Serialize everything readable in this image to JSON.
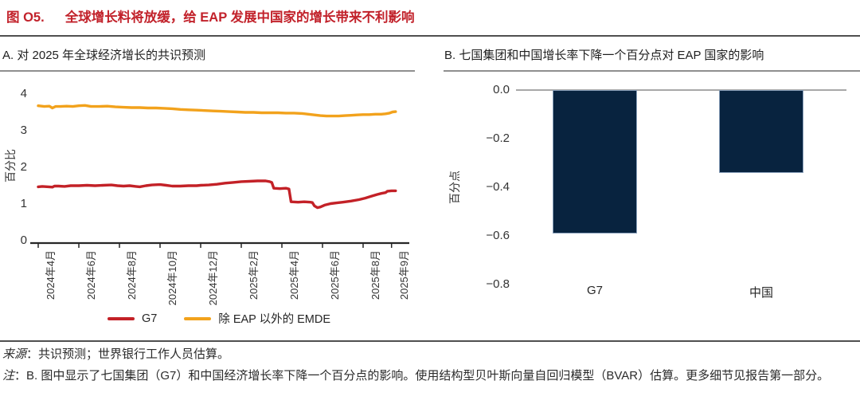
{
  "figure": {
    "label": "图 O5.",
    "title": "全球增长料将放缓，给 EAP 发展中国家的增长带来不利影响"
  },
  "panel_a": {
    "title": "A. 对 2025 年全球经济增长的共识预测"
  },
  "panel_b": {
    "title": "B. 七国集团和中国增长率下降一个百分点对 EAP 国家的影响"
  },
  "source": {
    "prefix": "来源",
    "text": "：共识预测；世界银行工作人员估算。"
  },
  "note": {
    "prefix": "注",
    "text": "：B. 图中显示了七国集团（G7）和中国经济增长率下降一个百分点的影响。使用结构型贝叶斯向量自回归模型（BVAR）估算。更多细节见报告第一部分。"
  },
  "colors": {
    "title_red": "#c2222b",
    "g7_line": "#c32127",
    "emde_line": "#f2a21c",
    "bar_navy": "#08233f",
    "axis": "#262626",
    "zero_line": "#a8a8a8"
  },
  "chart_data": [
    {
      "panel": "A",
      "type": "line",
      "title": "A. 对 2025 年全球经济增长的共识预测",
      "ylabel": "百分比",
      "ylim": [
        0,
        4
      ],
      "yticks": [
        0,
        1,
        2,
        3,
        4
      ],
      "x_unit": "months since 2024-04",
      "xticks": [
        {
          "m": 0,
          "label": "2024年4月"
        },
        {
          "m": 2,
          "label": "2024年6月"
        },
        {
          "m": 4,
          "label": "2024年8月"
        },
        {
          "m": 6,
          "label": "2024年10月"
        },
        {
          "m": 8,
          "label": "2024年12月"
        },
        {
          "m": 10,
          "label": "2025年2月"
        },
        {
          "m": 12,
          "label": "2025年4月"
        },
        {
          "m": 14,
          "label": "2025年6月"
        },
        {
          "m": 16,
          "label": "2025年8月"
        },
        {
          "m": 17.4,
          "label": "2025年9月"
        }
      ],
      "legend_position": "bottom",
      "grid": false,
      "series": [
        {
          "name": "G7",
          "color": "#c32127",
          "points": [
            [
              0,
              1.47
            ],
            [
              0.2,
              1.48
            ],
            [
              0.5,
              1.47
            ],
            [
              0.7,
              1.46
            ],
            [
              0.8,
              1.49
            ],
            [
              1,
              1.49
            ],
            [
              1.3,
              1.48
            ],
            [
              1.6,
              1.5
            ],
            [
              2,
              1.5
            ],
            [
              2.4,
              1.51
            ],
            [
              2.8,
              1.5
            ],
            [
              3.2,
              1.51
            ],
            [
              3.6,
              1.52
            ],
            [
              3.9,
              1.5
            ],
            [
              4.2,
              1.49
            ],
            [
              4.5,
              1.5
            ],
            [
              4.8,
              1.48
            ],
            [
              5,
              1.47
            ],
            [
              5.3,
              1.5
            ],
            [
              5.6,
              1.52
            ],
            [
              6,
              1.53
            ],
            [
              6.3,
              1.51
            ],
            [
              6.6,
              1.49
            ],
            [
              7,
              1.49
            ],
            [
              7.4,
              1.5
            ],
            [
              7.8,
              1.5
            ],
            [
              8,
              1.51
            ],
            [
              8.4,
              1.52
            ],
            [
              8.8,
              1.54
            ],
            [
              9.2,
              1.57
            ],
            [
              9.6,
              1.59
            ],
            [
              10,
              1.61
            ],
            [
              10.4,
              1.62
            ],
            [
              10.8,
              1.63
            ],
            [
              11.2,
              1.63
            ],
            [
              11.4,
              1.61
            ],
            [
              11.5,
              1.59
            ],
            [
              11.6,
              1.43
            ],
            [
              11.9,
              1.42
            ],
            [
              12.2,
              1.43
            ],
            [
              12.35,
              1.41
            ],
            [
              12.45,
              1.06
            ],
            [
              12.8,
              1.05
            ],
            [
              13.1,
              1.06
            ],
            [
              13.4,
              1.05
            ],
            [
              13.5,
              1.04
            ],
            [
              13.6,
              0.95
            ],
            [
              13.75,
              0.9
            ],
            [
              13.9,
              0.92
            ],
            [
              14.1,
              0.97
            ],
            [
              14.4,
              1.01
            ],
            [
              14.7,
              1.03
            ],
            [
              15,
              1.05
            ],
            [
              15.4,
              1.08
            ],
            [
              15.8,
              1.12
            ],
            [
              16.1,
              1.16
            ],
            [
              16.4,
              1.21
            ],
            [
              16.7,
              1.26
            ],
            [
              16.9,
              1.29
            ],
            [
              17.1,
              1.31
            ],
            [
              17.2,
              1.35
            ],
            [
              17.4,
              1.36
            ],
            [
              17.6,
              1.36
            ]
          ]
        },
        {
          "name": "除 EAP 以外的 EMDE",
          "color": "#f2a21c",
          "points": [
            [
              0,
              3.68
            ],
            [
              0.3,
              3.66
            ],
            [
              0.55,
              3.67
            ],
            [
              0.7,
              3.62
            ],
            [
              0.85,
              3.66
            ],
            [
              1.1,
              3.66
            ],
            [
              1.4,
              3.67
            ],
            [
              1.7,
              3.66
            ],
            [
              2,
              3.68
            ],
            [
              2.3,
              3.69
            ],
            [
              2.6,
              3.66
            ],
            [
              3,
              3.66
            ],
            [
              3.4,
              3.67
            ],
            [
              3.8,
              3.65
            ],
            [
              4.2,
              3.64
            ],
            [
              4.6,
              3.63
            ],
            [
              5,
              3.63
            ],
            [
              5.4,
              3.62
            ],
            [
              5.8,
              3.62
            ],
            [
              6.2,
              3.61
            ],
            [
              6.6,
              3.6
            ],
            [
              7,
              3.58
            ],
            [
              7.4,
              3.57
            ],
            [
              7.8,
              3.56
            ],
            [
              8.2,
              3.55
            ],
            [
              8.6,
              3.54
            ],
            [
              9,
              3.53
            ],
            [
              9.4,
              3.52
            ],
            [
              9.8,
              3.51
            ],
            [
              10.2,
              3.5
            ],
            [
              10.6,
              3.5
            ],
            [
              11,
              3.49
            ],
            [
              11.4,
              3.49
            ],
            [
              11.8,
              3.49
            ],
            [
              12.2,
              3.48
            ],
            [
              12.6,
              3.48
            ],
            [
              13,
              3.47
            ],
            [
              13.3,
              3.45
            ],
            [
              13.6,
              3.43
            ],
            [
              13.9,
              3.41
            ],
            [
              14.2,
              3.4
            ],
            [
              14.5,
              3.4
            ],
            [
              14.8,
              3.4
            ],
            [
              15.1,
              3.41
            ],
            [
              15.4,
              3.42
            ],
            [
              15.7,
              3.43
            ],
            [
              16,
              3.44
            ],
            [
              16.3,
              3.44
            ],
            [
              16.6,
              3.45
            ],
            [
              16.9,
              3.45
            ],
            [
              17.1,
              3.46
            ],
            [
              17.3,
              3.48
            ],
            [
              17.45,
              3.51
            ],
            [
              17.6,
              3.52
            ]
          ]
        }
      ]
    },
    {
      "panel": "B",
      "type": "bar",
      "title": "B. 七国集团和中国增长率下降一个百分点对 EAP 国家的影响",
      "ylabel": "百分点",
      "ylim": [
        -0.8,
        0
      ],
      "yticks": [
        0.0,
        -0.2,
        -0.4,
        -0.6,
        -0.8
      ],
      "ytick_labels": [
        "0.0",
        "−0.2",
        "−0.4",
        "−0.6",
        "−0.8"
      ],
      "categories": [
        "G7",
        "中国"
      ],
      "values": [
        -0.59,
        -0.34
      ],
      "bar_color": "#08233f",
      "grid": false
    }
  ]
}
